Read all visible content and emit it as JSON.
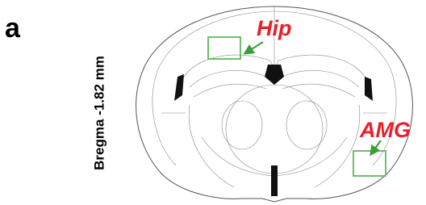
{
  "panel": {
    "letter": "a",
    "section_label": "Bregma -1.82 mm"
  },
  "regions": [
    {
      "label": "Hip"
    },
    {
      "label": "AMG"
    }
  ]
}
